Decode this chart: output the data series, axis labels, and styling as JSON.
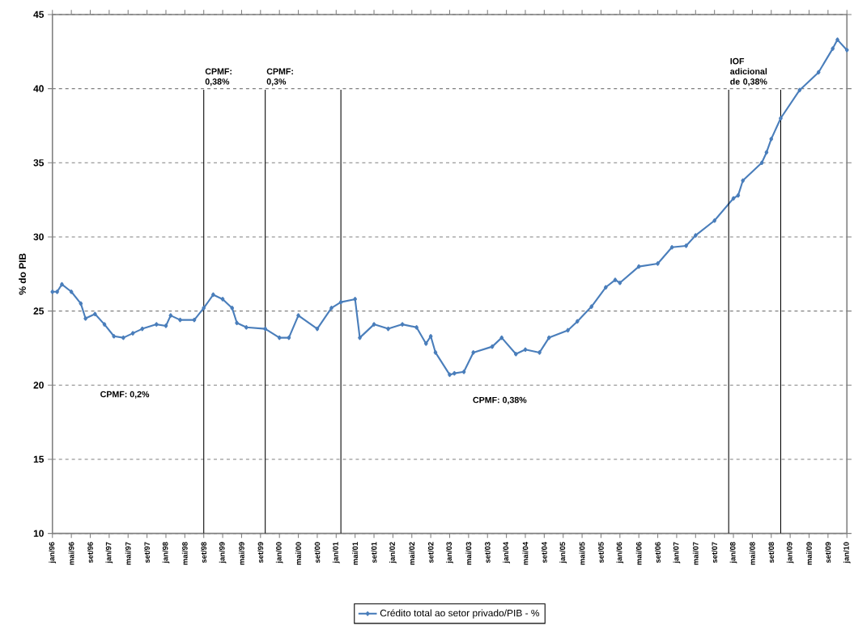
{
  "chart_data": {
    "type": "line",
    "ylabel": "% do PIB",
    "xlim": [
      "1996-01",
      "2010-01"
    ],
    "ylim": [
      10,
      45
    ],
    "yticks": [
      10,
      15,
      20,
      25,
      30,
      35,
      40,
      45
    ],
    "xticks": [
      {
        "value": "1996-01",
        "label": "jan/96"
      },
      {
        "value": "1996-05",
        "label": "mai/96"
      },
      {
        "value": "1996-09",
        "label": "set/96"
      },
      {
        "value": "1997-01",
        "label": "jan/97"
      },
      {
        "value": "1997-05",
        "label": "mai/97"
      },
      {
        "value": "1997-09",
        "label": "set/97"
      },
      {
        "value": "1998-01",
        "label": "jan/98"
      },
      {
        "value": "1998-05",
        "label": "mai/98"
      },
      {
        "value": "1998-09",
        "label": "set/98"
      },
      {
        "value": "1999-01",
        "label": "jan/99"
      },
      {
        "value": "1999-05",
        "label": "mai/99"
      },
      {
        "value": "1999-09",
        "label": "set/99"
      },
      {
        "value": "2000-01",
        "label": "jan/00"
      },
      {
        "value": "2000-05",
        "label": "mai/00"
      },
      {
        "value": "2000-09",
        "label": "set/00"
      },
      {
        "value": "2001-01",
        "label": "jan/01"
      },
      {
        "value": "2001-05",
        "label": "mai/01"
      },
      {
        "value": "2001-09",
        "label": "set/01"
      },
      {
        "value": "2002-01",
        "label": "jan/02"
      },
      {
        "value": "2002-05",
        "label": "mai/02"
      },
      {
        "value": "2002-09",
        "label": "set/02"
      },
      {
        "value": "2003-01",
        "label": "jan/03"
      },
      {
        "value": "2003-05",
        "label": "mai/03"
      },
      {
        "value": "2003-09",
        "label": "set/03"
      },
      {
        "value": "2004-01",
        "label": "jan/04"
      },
      {
        "value": "2004-05",
        "label": "mai/04"
      },
      {
        "value": "2004-09",
        "label": "set/04"
      },
      {
        "value": "2005-01",
        "label": "jan/05"
      },
      {
        "value": "2005-05",
        "label": "mai/05"
      },
      {
        "value": "2005-09",
        "label": "set/05"
      },
      {
        "value": "2006-01",
        "label": "jan/06"
      },
      {
        "value": "2006-05",
        "label": "mai/06"
      },
      {
        "value": "2006-09",
        "label": "set/06"
      },
      {
        "value": "2007-01",
        "label": "jan/07"
      },
      {
        "value": "2007-05",
        "label": "mai/07"
      },
      {
        "value": "2007-09",
        "label": "set/07"
      },
      {
        "value": "2008-01",
        "label": "jan/08"
      },
      {
        "value": "2008-05",
        "label": "mai/08"
      },
      {
        "value": "2008-09",
        "label": "set/08"
      },
      {
        "value": "2009-01",
        "label": "jan/09"
      },
      {
        "value": "2009-05",
        "label": "mai/09"
      },
      {
        "value": "2009-09",
        "label": "set/09"
      },
      {
        "value": "2010-01",
        "label": "jan/10"
      }
    ],
    "grid": "y",
    "legend": "bottom",
    "marker": "diamond",
    "line_style": "solid",
    "x": [
      "1996-01",
      "1996-02",
      "1996-03",
      "1996-05",
      "1996-07",
      "1996-08",
      "1996-10",
      "1996-12",
      "1997-02",
      "1997-04",
      "1997-06",
      "1997-08",
      "1997-11",
      "1998-01",
      "1998-02",
      "1998-04",
      "1998-07",
      "1998-09",
      "1998-11",
      "1999-01",
      "1999-03",
      "1999-04",
      "1999-06",
      "1999-10",
      "2000-01",
      "2000-03",
      "2000-05",
      "2000-09",
      "2000-12",
      "2001-02",
      "2001-05",
      "2001-06",
      "2001-09",
      "2001-12",
      "2002-03",
      "2002-06",
      "2002-08",
      "2002-09",
      "2002-10",
      "2003-01",
      "2003-02",
      "2003-04",
      "2003-06",
      "2003-10",
      "2003-12",
      "2004-03",
      "2004-05",
      "2004-08",
      "2004-10",
      "2005-02",
      "2005-04",
      "2005-07",
      "2005-10",
      "2005-12",
      "2006-01",
      "2006-05",
      "2006-09",
      "2006-12",
      "2007-03",
      "2007-05",
      "2007-09",
      "2008-01",
      "2008-02",
      "2008-03",
      "2008-07",
      "2008-08",
      "2008-09",
      "2008-11",
      "2009-03",
      "2009-07",
      "2009-10",
      "2009-11",
      "2010-01"
    ],
    "series": [
      {
        "name": "Crédito total ao setor privado/PIB - %",
        "color": "#4a7ebb",
        "values": [
          26.3,
          26.3,
          26.8,
          26.3,
          25.5,
          24.5,
          24.8,
          24.1,
          23.3,
          23.2,
          23.5,
          23.8,
          24.1,
          24.0,
          24.7,
          24.4,
          24.4,
          25.2,
          26.1,
          25.8,
          25.2,
          24.2,
          23.9,
          23.8,
          23.2,
          23.2,
          24.7,
          23.8,
          25.2,
          25.6,
          25.8,
          23.2,
          24.1,
          23.8,
          24.1,
          23.9,
          22.8,
          23.3,
          22.2,
          20.7,
          20.8,
          20.9,
          22.2,
          22.6,
          23.2,
          22.1,
          22.4,
          22.2,
          23.2,
          23.7,
          24.3,
          25.3,
          26.6,
          27.1,
          26.9,
          28.0,
          28.2,
          29.3,
          29.4,
          30.1,
          31.1,
          32.6,
          32.8,
          33.8,
          35.0,
          35.7,
          36.6,
          38.0,
          39.9,
          41.1,
          42.7,
          43.3,
          42.6
        ]
      }
    ],
    "ref_lines": [
      {
        "axis": "x",
        "value": "1998-09",
        "label": "CPMF: 0,38%",
        "color": "#000000"
      },
      {
        "axis": "x",
        "value": "1999-10",
        "label": "CPMF: 0,3%",
        "color": "#000000"
      },
      {
        "axis": "x",
        "value": "2001-02",
        "color": "#000000"
      },
      {
        "axis": "x",
        "value": "2007-12",
        "label": "IOF adicional de 0,38%",
        "color": "#000000"
      },
      {
        "axis": "x",
        "value": "2008-11",
        "color": "#000000"
      }
    ],
    "annotations": [
      "CPMF: 0,2%",
      "CPMF: 0,38%"
    ]
  }
}
